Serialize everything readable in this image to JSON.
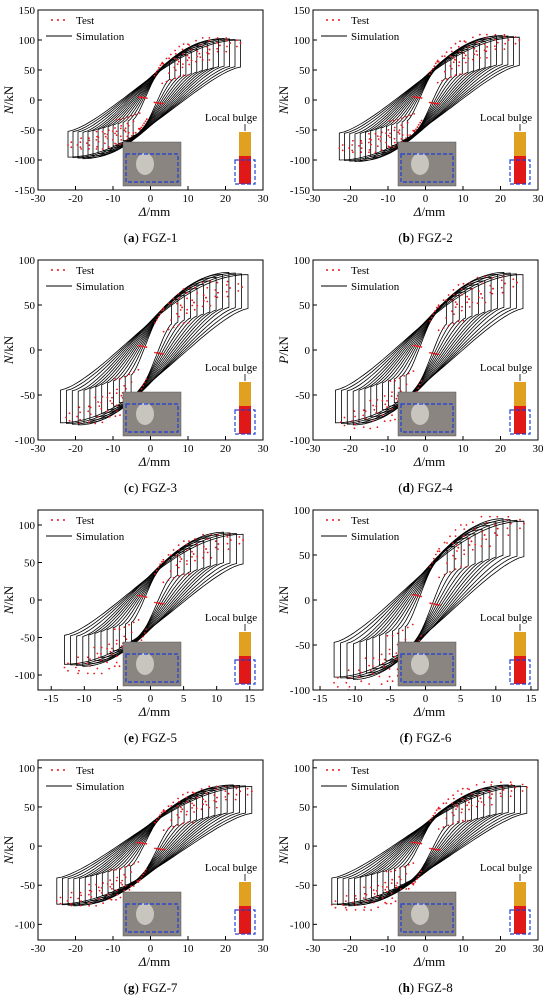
{
  "figure": {
    "legend": {
      "test": "Test",
      "simulation": "Simulation"
    },
    "annotation": "Local bulge",
    "colors": {
      "test": "#e8181e",
      "simulation": "#000000",
      "box": "#1f3fd8",
      "column_top": "#e0a020",
      "column_bottom": "#e01818"
    }
  },
  "chart_data": [
    {
      "type": "scatter",
      "panel_letter": "a",
      "caption": "FGZ-1",
      "ylabel": "N/kN",
      "xlabel": "Δ/mm",
      "xlim": [
        -30,
        30
      ],
      "xticks": [
        -30,
        -20,
        -10,
        0,
        10,
        20,
        30
      ],
      "ylim": [
        -150,
        150
      ],
      "yticks": [
        -150,
        -100,
        -50,
        0,
        50,
        100,
        150
      ],
      "amplitude": [
        22,
        24
      ],
      "peak_force": [
        100,
        105
      ],
      "test_peak": [
        75,
        95
      ],
      "cycles": 14
    },
    {
      "type": "scatter",
      "panel_letter": "b",
      "caption": "FGZ-2",
      "ylabel": "N/kN",
      "xlabel": "Δ/mm",
      "xlim": [
        -30,
        30
      ],
      "xticks": [
        -30,
        -20,
        -10,
        0,
        10,
        20,
        30
      ],
      "ylim": [
        -150,
        150
      ],
      "yticks": [
        -150,
        -100,
        -50,
        0,
        50,
        100,
        150
      ],
      "amplitude": [
        23,
        25
      ],
      "peak_force": [
        105,
        110
      ],
      "test_peak": [
        80,
        100
      ],
      "cycles": 14
    },
    {
      "type": "scatter",
      "panel_letter": "c",
      "caption": "FGZ-3",
      "ylabel": "N/kN",
      "xlabel": "Δ/mm",
      "xlim": [
        -30,
        30
      ],
      "xticks": [
        -30,
        -20,
        -10,
        0,
        10,
        20,
        30
      ],
      "ylim": [
        -100,
        100
      ],
      "yticks": [
        -100,
        -50,
        0,
        50,
        100
      ],
      "amplitude": [
        24,
        26
      ],
      "peak_force": [
        85,
        88
      ],
      "test_peak": [
        75,
        70
      ],
      "cycles": 13
    },
    {
      "type": "scatter",
      "panel_letter": "d",
      "caption": "FGZ-4",
      "ylabel": "P/kN",
      "xlabel": "Δ/mm",
      "xlim": [
        -30,
        30
      ],
      "xticks": [
        -30,
        -20,
        -10,
        0,
        10,
        20,
        30
      ],
      "ylim": [
        -100,
        100
      ],
      "yticks": [
        -100,
        -50,
        0,
        50,
        100
      ],
      "amplitude": [
        24,
        26
      ],
      "peak_force": [
        85,
        88
      ],
      "test_peak": [
        80,
        75
      ],
      "cycles": 13
    },
    {
      "type": "scatter",
      "panel_letter": "e",
      "caption": "FGZ-5",
      "ylabel": "N/kN",
      "xlabel": "Δ/mm",
      "xlim": [
        -17,
        17
      ],
      "xticks": [
        -15,
        -10,
        -5,
        0,
        5,
        10,
        15
      ],
      "ylim": [
        -120,
        120
      ],
      "yticks": [
        -100,
        -50,
        0,
        50,
        100
      ],
      "amplitude": [
        13,
        14
      ],
      "peak_force": [
        90,
        92
      ],
      "test_peak": [
        90,
        80
      ],
      "cycles": 12
    },
    {
      "type": "scatter",
      "panel_letter": "f",
      "caption": "FGZ-6",
      "ylabel": "N/kN",
      "xlabel": "Δ/mm",
      "xlim": [
        -16,
        16
      ],
      "xticks": [
        -15,
        -10,
        -5,
        0,
        5,
        10,
        15
      ],
      "ylim": [
        -100,
        100
      ],
      "yticks": [
        -100,
        -50,
        0,
        50,
        100
      ],
      "amplitude": [
        13,
        14
      ],
      "peak_force": [
        90,
        92
      ],
      "test_peak": [
        92,
        85
      ],
      "cycles": 12
    },
    {
      "type": "scatter",
      "panel_letter": "g",
      "caption": "FGZ-7",
      "ylabel": "N/kN",
      "xlabel": "Δ/mm",
      "xlim": [
        -30,
        30
      ],
      "xticks": [
        -30,
        -20,
        -10,
        0,
        10,
        20,
        30
      ],
      "ylim": [
        -120,
        110
      ],
      "yticks": [
        -100,
        -50,
        0,
        50,
        100
      ],
      "amplitude": [
        25,
        27
      ],
      "peak_force": [
        78,
        80
      ],
      "test_peak": [
        70,
        70
      ],
      "cycles": 14
    },
    {
      "type": "scatter",
      "panel_letter": "h",
      "caption": "FGZ-8",
      "ylabel": "N/kN",
      "xlabel": "Δ/mm",
      "xlim": [
        -30,
        30
      ],
      "xticks": [
        -30,
        -20,
        -10,
        0,
        10,
        20,
        30
      ],
      "ylim": [
        -120,
        110
      ],
      "yticks": [
        -100,
        -50,
        0,
        50,
        100
      ],
      "amplitude": [
        25,
        27
      ],
      "peak_force": [
        78,
        80
      ],
      "test_peak": [
        75,
        75
      ],
      "cycles": 14
    }
  ]
}
